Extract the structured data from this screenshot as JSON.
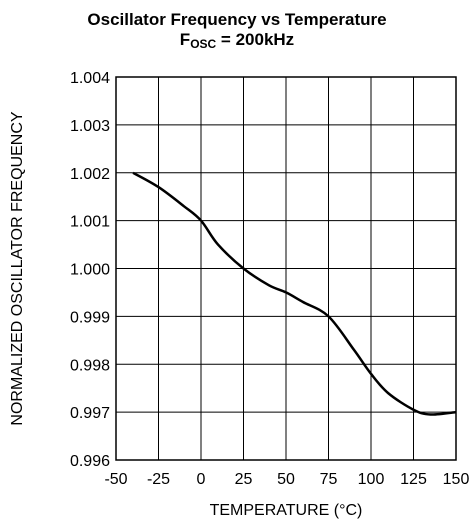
{
  "chart_data": {
    "type": "line",
    "title": "Oscillator Frequency vs Temperature",
    "subtitle_prefix": "F",
    "subtitle_subscript": "OSC",
    "subtitle_suffix": " = 200kHz",
    "xlabel": "TEMPERATURE (°C)",
    "ylabel": "NORMALIZED OSCILLATOR  FREQUENCY",
    "xlim": [
      -50,
      150
    ],
    "ylim": [
      0.996,
      1.004
    ],
    "grid": true,
    "x_ticks": [
      "-50",
      "-25",
      "0",
      "25",
      "50",
      "75",
      "100",
      "125",
      "150"
    ],
    "y_ticks": [
      "0.996",
      "0.997",
      "0.998",
      "0.999",
      "1.000",
      "1.001",
      "1.002",
      "1.003",
      "1.004"
    ],
    "series": [
      {
        "x": [
          -40,
          -25,
          -10,
          0,
          10,
          25,
          40,
          50,
          60,
          75,
          90,
          100,
          110,
          125,
          135,
          150
        ],
        "y": [
          1.002,
          1.0017,
          1.0013,
          1.001,
          1.0005,
          1.0,
          0.99965,
          0.9995,
          0.9993,
          0.999,
          0.9983,
          0.9978,
          0.9974,
          0.99705,
          0.99695,
          0.997
        ]
      }
    ]
  }
}
